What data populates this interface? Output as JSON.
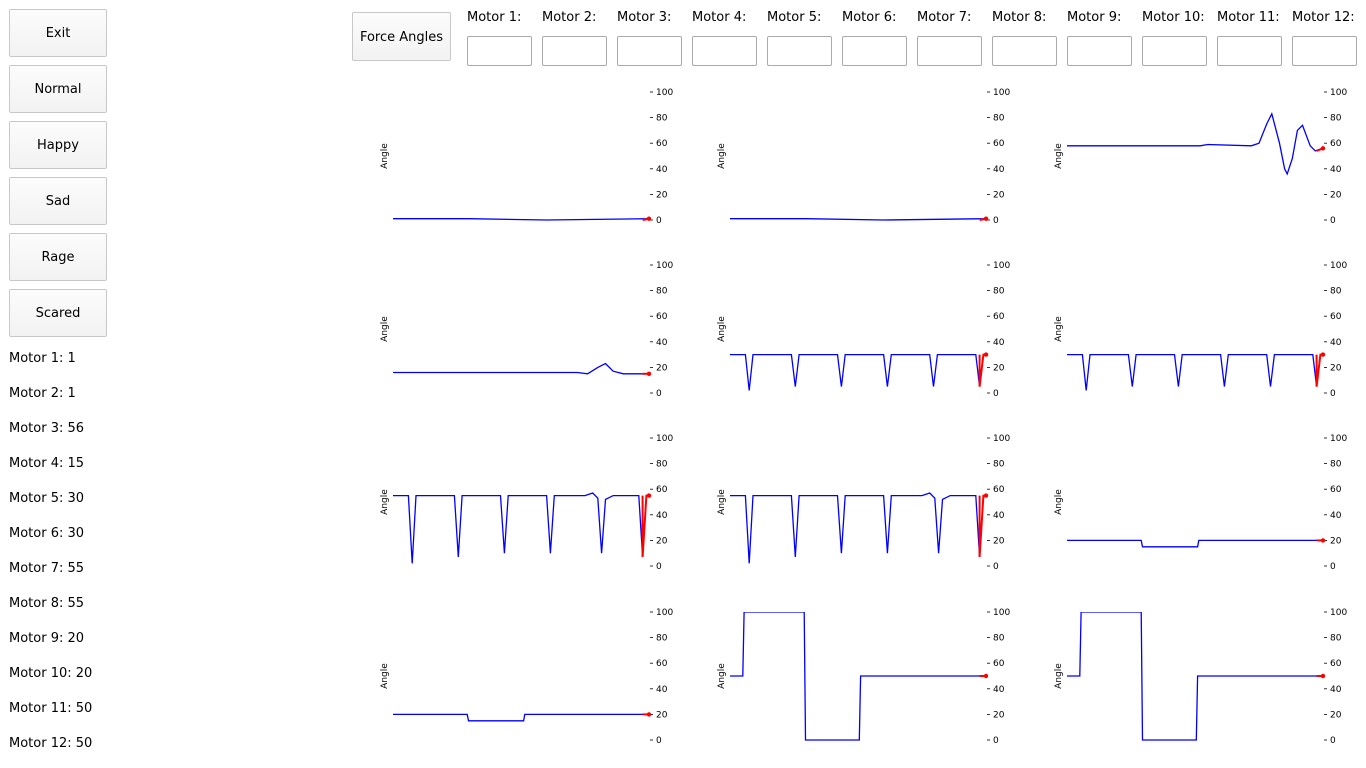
{
  "sidebar": {
    "buttons": [
      "Exit",
      "Normal",
      "Happy",
      "Sad",
      "Rage",
      "Scared"
    ],
    "readouts": [
      "Motor 1: 1",
      "Motor 2: 1",
      "Motor 3: 56",
      "Motor 4: 15",
      "Motor 5: 30",
      "Motor 6: 30",
      "Motor 7: 55",
      "Motor 8: 55",
      "Motor 9: 20",
      "Motor 10: 20",
      "Motor 11: 50",
      "Motor 12: 50"
    ]
  },
  "toolbar": {
    "force_label": "Force Angles",
    "motor_labels": [
      "Motor 1:",
      "Motor 2:",
      "Motor 3:",
      "Motor 4:",
      "Motor 5:",
      "Motor 6:",
      "Motor 7:",
      "Motor 8:",
      "Motor 9:",
      "Motor 10:",
      "Motor 11:",
      "Motor 12:"
    ],
    "motor_values": [
      "",
      "",
      "",
      "",
      "",
      "",
      "",
      "",
      "",
      "",
      "",
      ""
    ]
  },
  "chart_data": [
    {
      "type": "line",
      "motor": 1,
      "ylabel": "Angle",
      "ylim": [
        0,
        100
      ],
      "yticks": [
        0,
        20,
        40,
        60,
        80,
        100
      ],
      "current": 1,
      "history_color": "#0000ff",
      "recent_color": "#ff0000",
      "segments": [
        [
          0,
          1
        ],
        [
          0.3,
          1
        ],
        [
          0.6,
          0
        ],
        [
          1,
          1
        ],
        [
          1,
          2
        ],
        [
          1,
          1
        ],
        [
          1,
          1
        ],
        [
          1,
          1
        ],
        [
          1,
          1
        ]
      ]
    },
    {
      "type": "line",
      "motor": 2,
      "ylabel": "Angle",
      "ylim": [
        0,
        100
      ],
      "yticks": [
        0,
        20,
        40,
        60,
        80,
        100
      ],
      "current": 1,
      "history_color": "#0000ff",
      "recent_color": "#ff0000",
      "segments": [
        [
          0,
          1
        ],
        [
          0.3,
          1
        ],
        [
          0.6,
          0
        ],
        [
          1,
          1
        ],
        [
          1,
          2
        ],
        [
          1,
          1
        ],
        [
          1,
          1
        ],
        [
          1,
          1
        ],
        [
          1,
          1
        ]
      ]
    },
    {
      "type": "line",
      "motor": 3,
      "ylabel": "Angle",
      "ylim": [
        0,
        100
      ],
      "yticks": [
        0,
        20,
        40,
        60,
        80,
        100
      ],
      "current": 56,
      "history_color": "#0000ff",
      "recent_color": "#ff0000",
      "segments": [
        [
          0,
          58
        ],
        [
          0.52,
          58
        ],
        [
          0.55,
          59
        ],
        [
          0.72,
          58
        ],
        [
          0.75,
          60
        ],
        [
          0.78,
          75
        ],
        [
          0.8,
          83
        ],
        [
          0.83,
          60
        ],
        [
          0.85,
          40
        ],
        [
          0.86,
          36
        ],
        [
          0.88,
          48
        ],
        [
          0.9,
          70
        ],
        [
          0.92,
          74
        ],
        [
          0.95,
          58
        ],
        [
          0.97,
          54
        ],
        [
          1,
          56
        ]
      ]
    },
    {
      "type": "line",
      "motor": 4,
      "ylabel": "Angle",
      "ylim": [
        0,
        100
      ],
      "yticks": [
        0,
        20,
        40,
        60,
        80,
        100
      ],
      "current": 15,
      "history_color": "#0000ff",
      "recent_color": "#ff0000",
      "segments": [
        [
          0,
          16
        ],
        [
          0.72,
          16
        ],
        [
          0.76,
          15
        ],
        [
          0.8,
          20
        ],
        [
          0.83,
          23
        ],
        [
          0.86,
          17
        ],
        [
          0.9,
          15
        ],
        [
          1,
          15
        ]
      ]
    },
    {
      "type": "line",
      "motor": 5,
      "ylabel": "Angle",
      "ylim": [
        0,
        100
      ],
      "yticks": [
        0,
        20,
        40,
        60,
        80,
        100
      ],
      "current": 30,
      "history_color": "#0000ff",
      "recent_color": "#ff0000",
      "segments": [
        [
          0,
          30
        ],
        [
          0.06,
          30
        ],
        [
          0.075,
          2
        ],
        [
          0.09,
          30
        ],
        [
          0.24,
          30
        ],
        [
          0.255,
          5
        ],
        [
          0.27,
          30
        ],
        [
          0.42,
          30
        ],
        [
          0.435,
          5
        ],
        [
          0.45,
          30
        ],
        [
          0.6,
          30
        ],
        [
          0.615,
          5
        ],
        [
          0.63,
          30
        ],
        [
          0.78,
          30
        ],
        [
          0.795,
          5
        ],
        [
          0.81,
          30
        ],
        [
          0.96,
          30
        ],
        [
          0.975,
          5
        ],
        [
          0.99,
          30
        ],
        [
          1,
          30
        ]
      ]
    },
    {
      "type": "line",
      "motor": 6,
      "ylabel": "Angle",
      "ylim": [
        0,
        100
      ],
      "yticks": [
        0,
        20,
        40,
        60,
        80,
        100
      ],
      "current": 30,
      "history_color": "#0000ff",
      "recent_color": "#ff0000",
      "segments": [
        [
          0,
          30
        ],
        [
          0.06,
          30
        ],
        [
          0.075,
          2
        ],
        [
          0.09,
          30
        ],
        [
          0.24,
          30
        ],
        [
          0.255,
          5
        ],
        [
          0.27,
          30
        ],
        [
          0.42,
          30
        ],
        [
          0.435,
          5
        ],
        [
          0.45,
          30
        ],
        [
          0.6,
          30
        ],
        [
          0.615,
          5
        ],
        [
          0.63,
          30
        ],
        [
          0.78,
          30
        ],
        [
          0.795,
          5
        ],
        [
          0.81,
          30
        ],
        [
          0.96,
          30
        ],
        [
          0.975,
          5
        ],
        [
          0.99,
          30
        ],
        [
          1,
          30
        ]
      ]
    },
    {
      "type": "line",
      "motor": 7,
      "ylabel": "Angle",
      "ylim": [
        0,
        100
      ],
      "yticks": [
        0,
        20,
        40,
        60,
        80,
        100
      ],
      "current": 55,
      "history_color": "#0000ff",
      "recent_color": "#ff0000",
      "segments": [
        [
          0,
          55
        ],
        [
          0.06,
          55
        ],
        [
          0.075,
          2
        ],
        [
          0.09,
          55
        ],
        [
          0.24,
          55
        ],
        [
          0.255,
          7
        ],
        [
          0.27,
          55
        ],
        [
          0.42,
          55
        ],
        [
          0.435,
          10
        ],
        [
          0.45,
          55
        ],
        [
          0.6,
          55
        ],
        [
          0.615,
          10
        ],
        [
          0.63,
          55
        ],
        [
          0.75,
          55
        ],
        [
          0.78,
          57
        ],
        [
          0.8,
          53
        ],
        [
          0.815,
          10
        ],
        [
          0.83,
          52
        ],
        [
          0.86,
          55
        ],
        [
          0.96,
          55
        ],
        [
          0.975,
          7
        ],
        [
          0.99,
          55
        ],
        [
          1,
          55
        ]
      ]
    },
    {
      "type": "line",
      "motor": 8,
      "ylabel": "Angle",
      "ylim": [
        0,
        100
      ],
      "yticks": [
        0,
        20,
        40,
        60,
        80,
        100
      ],
      "current": 55,
      "history_color": "#0000ff",
      "recent_color": "#ff0000",
      "segments": [
        [
          0,
          55
        ],
        [
          0.06,
          55
        ],
        [
          0.075,
          2
        ],
        [
          0.09,
          55
        ],
        [
          0.24,
          55
        ],
        [
          0.255,
          7
        ],
        [
          0.27,
          55
        ],
        [
          0.42,
          55
        ],
        [
          0.435,
          10
        ],
        [
          0.45,
          55
        ],
        [
          0.6,
          55
        ],
        [
          0.615,
          10
        ],
        [
          0.63,
          55
        ],
        [
          0.75,
          55
        ],
        [
          0.78,
          57
        ],
        [
          0.8,
          53
        ],
        [
          0.815,
          10
        ],
        [
          0.83,
          52
        ],
        [
          0.86,
          55
        ],
        [
          0.96,
          55
        ],
        [
          0.975,
          7
        ],
        [
          0.99,
          55
        ],
        [
          1,
          55
        ]
      ]
    },
    {
      "type": "line",
      "motor": 9,
      "ylabel": "Angle",
      "ylim": [
        0,
        100
      ],
      "yticks": [
        0,
        20,
        40,
        60,
        80,
        100
      ],
      "current": 20,
      "history_color": "#0000ff",
      "recent_color": "#ff0000",
      "segments": [
        [
          0,
          20
        ],
        [
          0.29,
          20
        ],
        [
          0.295,
          15
        ],
        [
          0.51,
          15
        ],
        [
          0.515,
          20
        ],
        [
          1,
          20
        ]
      ]
    },
    {
      "type": "line",
      "motor": 10,
      "ylabel": "Angle",
      "ylim": [
        0,
        100
      ],
      "yticks": [
        0,
        20,
        40,
        60,
        80,
        100
      ],
      "current": 20,
      "history_color": "#0000ff",
      "recent_color": "#ff0000",
      "segments": [
        [
          0,
          20
        ],
        [
          0.29,
          20
        ],
        [
          0.295,
          15
        ],
        [
          0.51,
          15
        ],
        [
          0.515,
          20
        ],
        [
          1,
          20
        ]
      ]
    },
    {
      "type": "line",
      "motor": 11,
      "ylabel": "Angle",
      "ylim": [
        0,
        100
      ],
      "yticks": [
        0,
        20,
        40,
        60,
        80,
        100
      ],
      "current": 50,
      "history_color": "#0000ff",
      "recent_color": "#ff0000",
      "segments": [
        [
          0,
          50
        ],
        [
          0.05,
          50
        ],
        [
          0.055,
          100
        ],
        [
          0.29,
          100
        ],
        [
          0.295,
          0
        ],
        [
          0.505,
          0
        ],
        [
          0.51,
          50
        ],
        [
          1,
          50
        ]
      ]
    },
    {
      "type": "line",
      "motor": 12,
      "ylabel": "Angle",
      "ylim": [
        0,
        100
      ],
      "yticks": [
        0,
        20,
        40,
        60,
        80,
        100
      ],
      "current": 50,
      "history_color": "#0000ff",
      "recent_color": "#ff0000",
      "segments": [
        [
          0,
          50
        ],
        [
          0.05,
          50
        ],
        [
          0.055,
          100
        ],
        [
          0.29,
          100
        ],
        [
          0.295,
          0
        ],
        [
          0.505,
          0
        ],
        [
          0.51,
          50
        ],
        [
          1,
          50
        ]
      ]
    }
  ]
}
